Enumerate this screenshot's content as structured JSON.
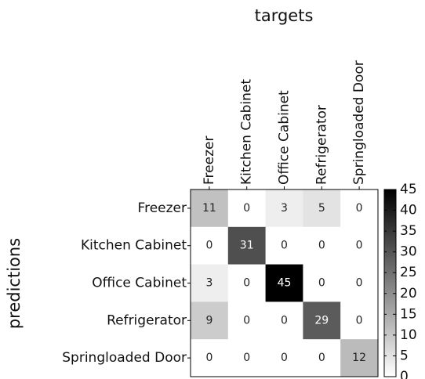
{
  "chart_data": {
    "type": "heatmap",
    "xlabel": "targets",
    "ylabel": "predictions",
    "x_categories": [
      "Freezer",
      "Kitchen Cabinet",
      "Office Cabinet",
      "Refrigerator",
      "Springloaded Door"
    ],
    "y_categories": [
      "Freezer",
      "Kitchen Cabinet",
      "Office Cabinet",
      "Refrigerator",
      "Springloaded Door"
    ],
    "values": [
      [
        11,
        0,
        3,
        5,
        0
      ],
      [
        0,
        31,
        0,
        0,
        0
      ],
      [
        3,
        0,
        45,
        0,
        0
      ],
      [
        9,
        0,
        0,
        29,
        0
      ],
      [
        0,
        0,
        0,
        0,
        12
      ]
    ],
    "colors": [
      "#ffffff",
      "#000000"
    ],
    "clim": [
      0,
      45
    ],
    "cticks": [
      0,
      5,
      10,
      15,
      20,
      25,
      30,
      35,
      40,
      45
    ]
  }
}
